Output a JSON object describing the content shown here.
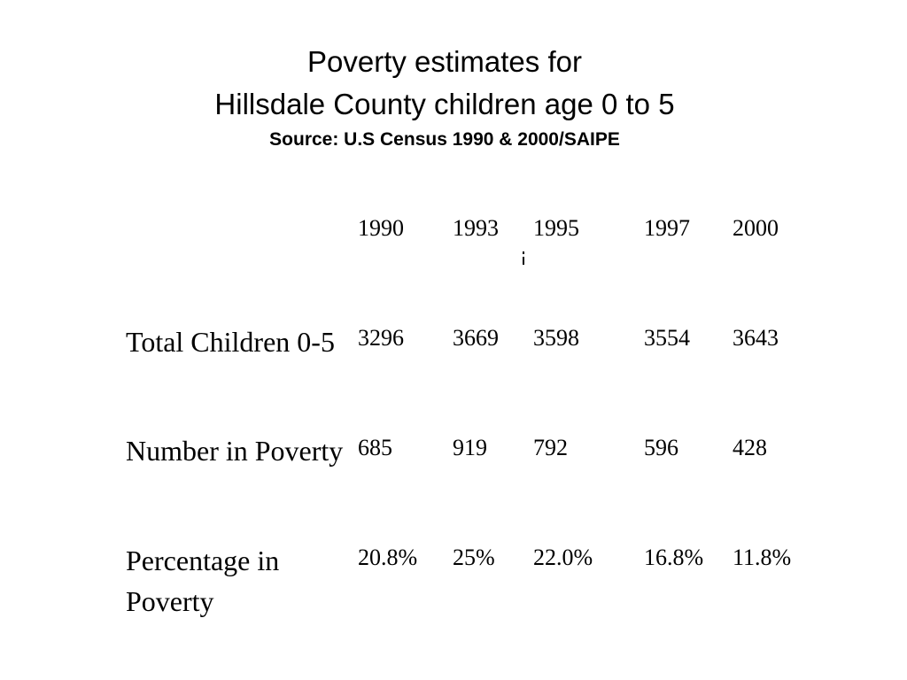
{
  "title": {
    "line1": "Poverty estimates for",
    "line2": "Hillsdale County children age 0 to 5",
    "source": "Source: U.S Census 1990 & 2000/SAIPE"
  },
  "table": {
    "years": [
      "1990",
      "1993",
      "1995",
      "1997",
      "2000"
    ],
    "rows": [
      {
        "label": "Total Children 0-5",
        "values": [
          "3296",
          "3669",
          "3598",
          "3554",
          "3643"
        ]
      },
      {
        "label": "Number in Poverty",
        "values": [
          "685",
          "919",
          "792",
          "596",
          "428"
        ]
      },
      {
        "label": "Percentage in Poverty",
        "values": [
          "20.8%",
          "25%",
          "22.0%",
          "16.8%",
          "11.8%"
        ]
      }
    ]
  }
}
